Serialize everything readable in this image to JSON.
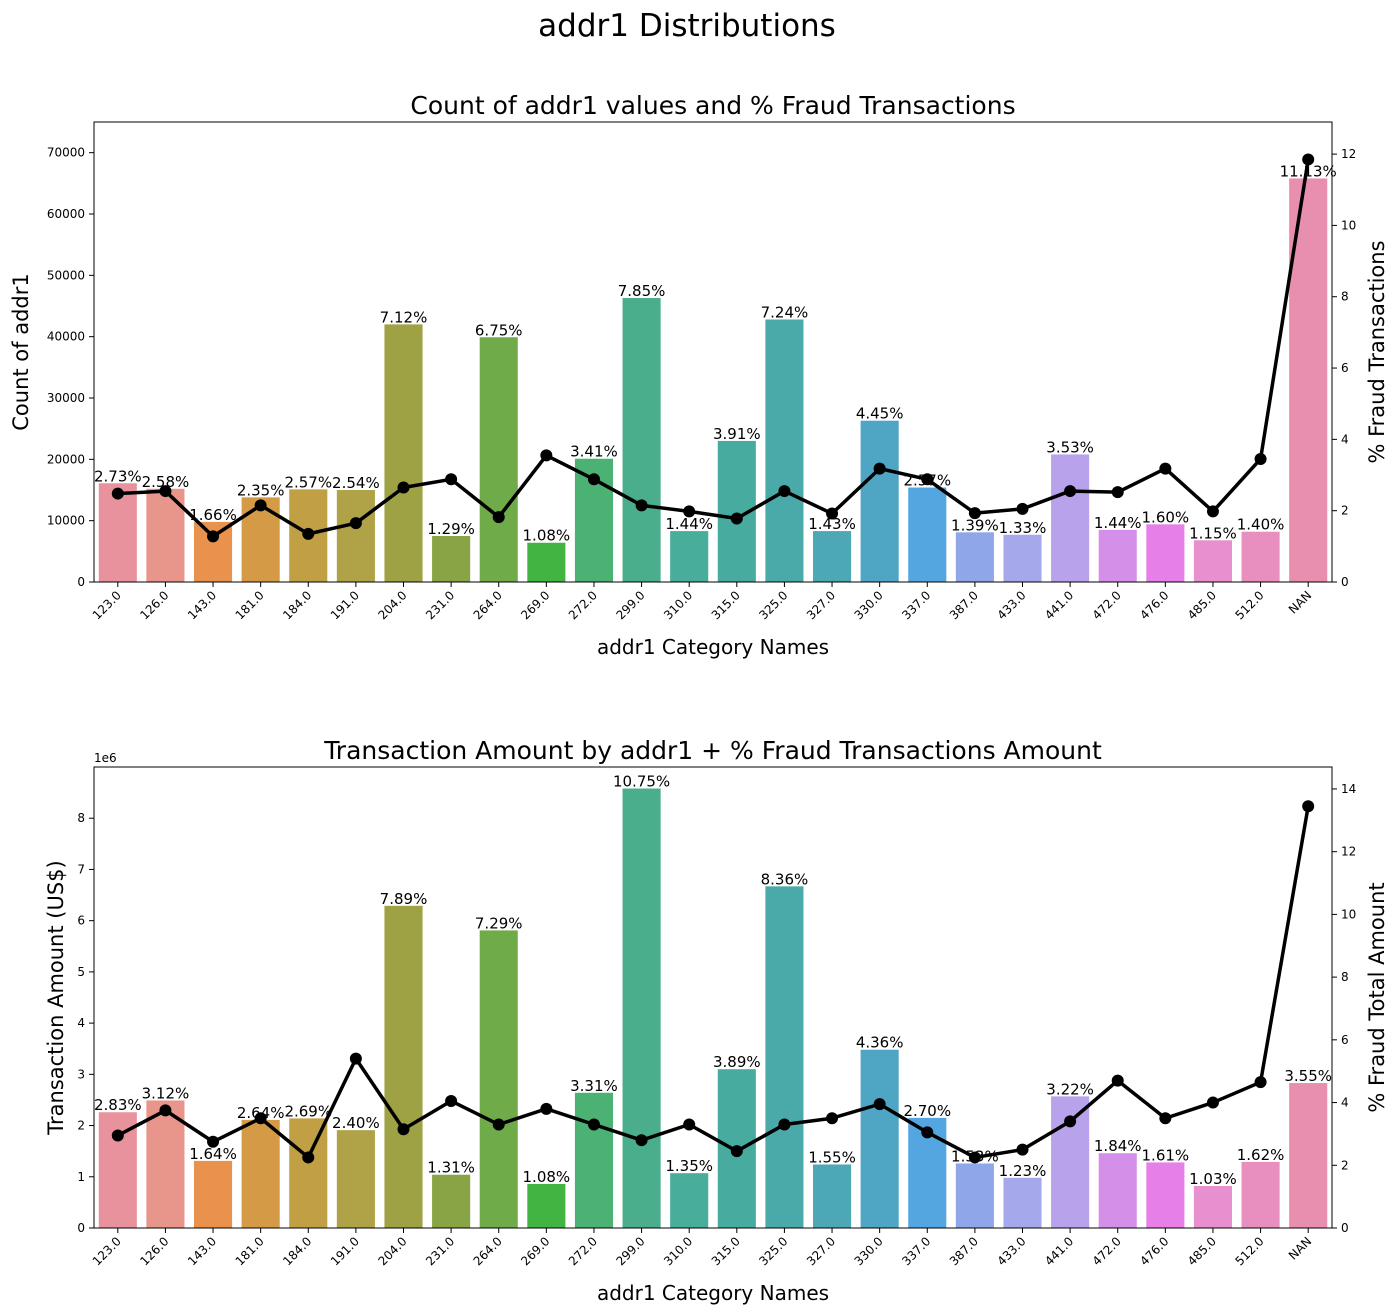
{
  "figure": {
    "suptitle": "addr1 Distributions"
  },
  "chart_data": [
    {
      "type": "bar",
      "title": "Count of addr1 values and % Fraud Transactions",
      "xlabel": "addr1 Category Names",
      "ylabel": "Count of addr1",
      "y2label": "% Fraud Transactions",
      "ylim": [
        0,
        75000
      ],
      "y2lim": [
        0,
        12.9
      ],
      "yticks": [
        0,
        10000,
        20000,
        30000,
        40000,
        50000,
        60000,
        70000
      ],
      "y2ticks": [
        0,
        2,
        4,
        6,
        8,
        10,
        12
      ],
      "offset_text": "",
      "categories": [
        "123.0",
        "126.0",
        "143.0",
        "181.0",
        "184.0",
        "191.0",
        "204.0",
        "231.0",
        "264.0",
        "269.0",
        "272.0",
        "299.0",
        "310.0",
        "315.0",
        "325.0",
        "327.0",
        "330.0",
        "337.0",
        "387.0",
        "433.0",
        "441.0",
        "472.0",
        "476.0",
        "485.0",
        "512.0",
        "NAN"
      ],
      "values": [
        16100,
        15200,
        9800,
        13800,
        15100,
        15000,
        42000,
        7500,
        39900,
        6400,
        20100,
        46300,
        8300,
        23000,
        42800,
        8300,
        26300,
        15400,
        8100,
        7700,
        20800,
        8500,
        9400,
        6800,
        8200,
        65800
      ],
      "bar_labels": [
        "2.73%",
        "2.58%",
        "1.66%",
        "2.35%",
        "2.57%",
        "2.54%",
        "7.12%",
        "1.29%",
        "6.75%",
        "1.08%",
        "3.41%",
        "7.85%",
        "1.44%",
        "3.91%",
        "7.24%",
        "1.43%",
        "4.45%",
        "2.57%",
        "1.39%",
        "1.33%",
        "3.53%",
        "1.44%",
        "1.60%",
        "1.15%",
        "1.40%",
        "11.13%"
      ],
      "line_series": {
        "values": [
          2.48,
          2.55,
          1.28,
          2.15,
          1.35,
          1.65,
          2.65,
          2.88,
          1.82,
          3.55,
          2.88,
          2.15,
          1.98,
          1.78,
          2.55,
          1.92,
          3.18,
          2.88,
          1.93,
          2.05,
          2.55,
          2.52,
          3.18,
          1.98,
          3.45,
          11.85
        ]
      },
      "colors": [
        "#e8929d",
        "#e8958b",
        "#e8924e",
        "#d49a45",
        "#c19f45",
        "#b0a246",
        "#9ea144",
        "#89a444",
        "#6fab49",
        "#42b442",
        "#4cb273",
        "#4aae8d",
        "#48ad9b",
        "#48ab9f",
        "#4aaaa9",
        "#4ba8b4",
        "#4fa5c4",
        "#54a6e0",
        "#8fa6e8",
        "#a6a8ec",
        "#b9a2ec",
        "#d48fe8",
        "#e67fe8",
        "#e88fd0",
        "#e88fc0",
        "#e88fb0"
      ]
    },
    {
      "type": "bar",
      "title": "Transaction Amount by addr1 + % Fraud Transactions Amount",
      "xlabel": "addr1 Category Names",
      "ylabel": "Transaction Amount (US$)",
      "y2label": "% Fraud Total Amount",
      "ylim": [
        0,
        9000000
      ],
      "y2lim": [
        0,
        14.7
      ],
      "yticks": [
        0,
        1000000,
        2000000,
        3000000,
        4000000,
        5000000,
        6000000,
        7000000,
        8000000
      ],
      "y2ticks": [
        0,
        2,
        4,
        6,
        8,
        10,
        12,
        14
      ],
      "offset_text": "1e6",
      "categories": [
        "123.0",
        "126.0",
        "143.0",
        "181.0",
        "184.0",
        "191.0",
        "204.0",
        "231.0",
        "264.0",
        "269.0",
        "272.0",
        "299.0",
        "310.0",
        "315.0",
        "325.0",
        "327.0",
        "330.0",
        "337.0",
        "387.0",
        "433.0",
        "441.0",
        "472.0",
        "476.0",
        "485.0",
        "512.0",
        "NAN"
      ],
      "values": [
        2260000,
        2490000,
        1310000,
        2110000,
        2140000,
        1910000,
        6290000,
        1040000,
        5810000,
        860000,
        2640000,
        8580000,
        1070000,
        3100000,
        6670000,
        1240000,
        3480000,
        2150000,
        1260000,
        980000,
        2570000,
        1460000,
        1280000,
        820000,
        1290000,
        2830000
      ],
      "bar_labels": [
        "2.83%",
        "3.12%",
        "1.64%",
        "2.64%",
        "2.69%",
        "2.40%",
        "7.89%",
        "1.31%",
        "7.29%",
        "1.08%",
        "3.31%",
        "10.75%",
        "1.35%",
        "3.89%",
        "8.36%",
        "1.55%",
        "4.36%",
        "2.70%",
        "1.53%",
        "1.23%",
        "3.22%",
        "1.84%",
        "1.61%",
        "1.03%",
        "1.62%",
        "3.55%"
      ],
      "line_series": {
        "values": [
          2.95,
          3.75,
          2.75,
          3.5,
          2.25,
          5.4,
          3.15,
          4.05,
          3.3,
          3.8,
          3.3,
          2.8,
          3.3,
          2.45,
          3.3,
          3.5,
          3.95,
          3.05,
          2.25,
          2.5,
          3.4,
          4.7,
          3.5,
          4.0,
          4.65,
          13.45
        ]
      },
      "colors": [
        "#e8929d",
        "#e8958b",
        "#e8924e",
        "#d49a45",
        "#c19f45",
        "#b0a246",
        "#9ea144",
        "#89a444",
        "#6fab49",
        "#42b442",
        "#4cb273",
        "#4aae8d",
        "#48ad9b",
        "#48ab9f",
        "#4aaaa9",
        "#4ba8b4",
        "#4fa5c4",
        "#54a6e0",
        "#8fa6e8",
        "#a6a8ec",
        "#b9a2ec",
        "#d48fe8",
        "#e67fe8",
        "#e88fd0",
        "#e88fc0",
        "#e88fb0"
      ]
    }
  ]
}
